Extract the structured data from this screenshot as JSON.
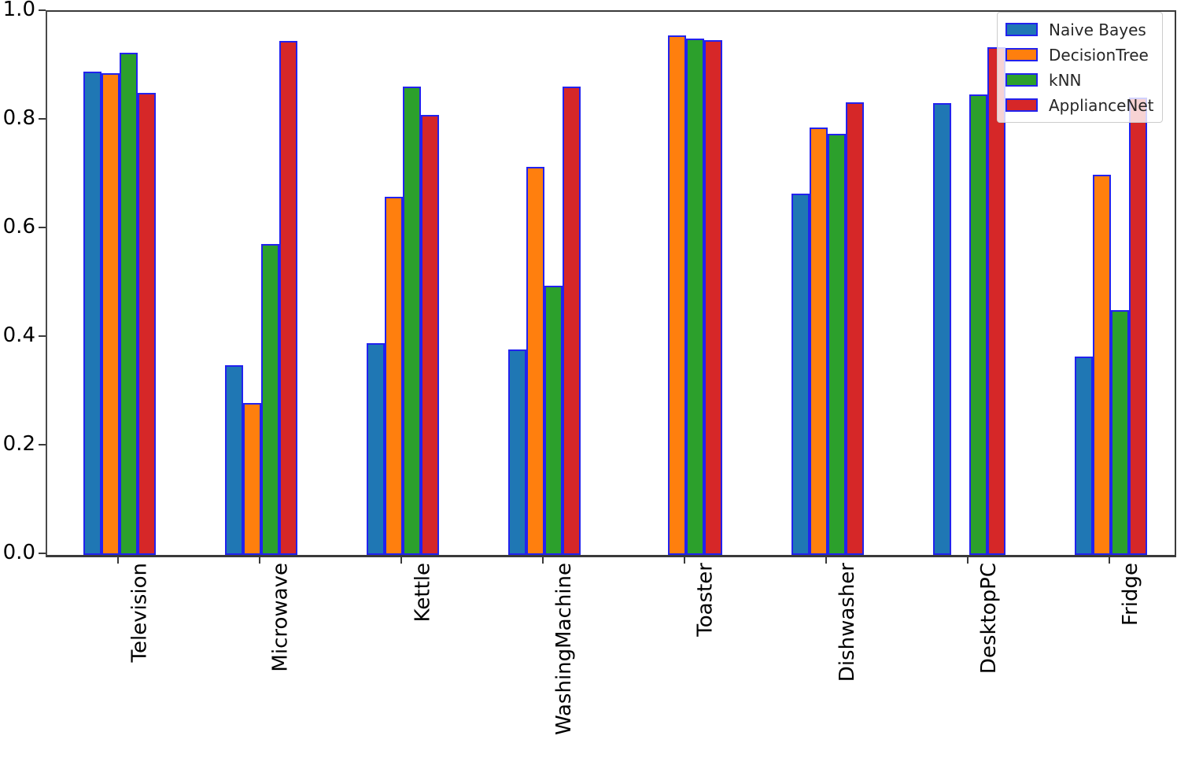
{
  "chart_data": {
    "type": "bar",
    "title": "",
    "xlabel": "",
    "ylabel": "",
    "categories": [
      "Television",
      "Microwave",
      "Kettle",
      "WashingMachine",
      "Toaster",
      "Dishwasher",
      "DesktopPC",
      "Fridge"
    ],
    "series": [
      {
        "name": "Naive Bayes",
        "color": "#1f77b4",
        "values": [
          0.89,
          0.35,
          0.39,
          0.378,
          0.0,
          0.665,
          0.832,
          0.365
        ]
      },
      {
        "name": "DecisionTree",
        "color": "#ff7f0e",
        "values": [
          0.887,
          0.28,
          0.66,
          0.715,
          0.957,
          0.787,
          0.0,
          0.7
        ]
      },
      {
        "name": "kNN",
        "color": "#2ca02c",
        "values": [
          0.925,
          0.573,
          0.862,
          0.495,
          0.95,
          0.775,
          0.848,
          0.45
        ]
      },
      {
        "name": "ApplianceNet",
        "color": "#d62728",
        "values": [
          0.85,
          0.947,
          0.81,
          0.862,
          0.948,
          0.833,
          0.935,
          0.842
        ]
      }
    ],
    "ylim": [
      0.0,
      1.0
    ],
    "yticks": [
      "0.0",
      "0.2",
      "0.4",
      "0.6",
      "0.8",
      "1.0"
    ],
    "xtick_rotation_deg": -90,
    "grid": false,
    "legend_position": "upper right",
    "bar_edge_color": "#2222ee",
    "missing_bars": [
      {
        "category": "Toaster",
        "series": "Naive Bayes"
      },
      {
        "category": "DesktopPC",
        "series": "DecisionTree"
      }
    ]
  }
}
